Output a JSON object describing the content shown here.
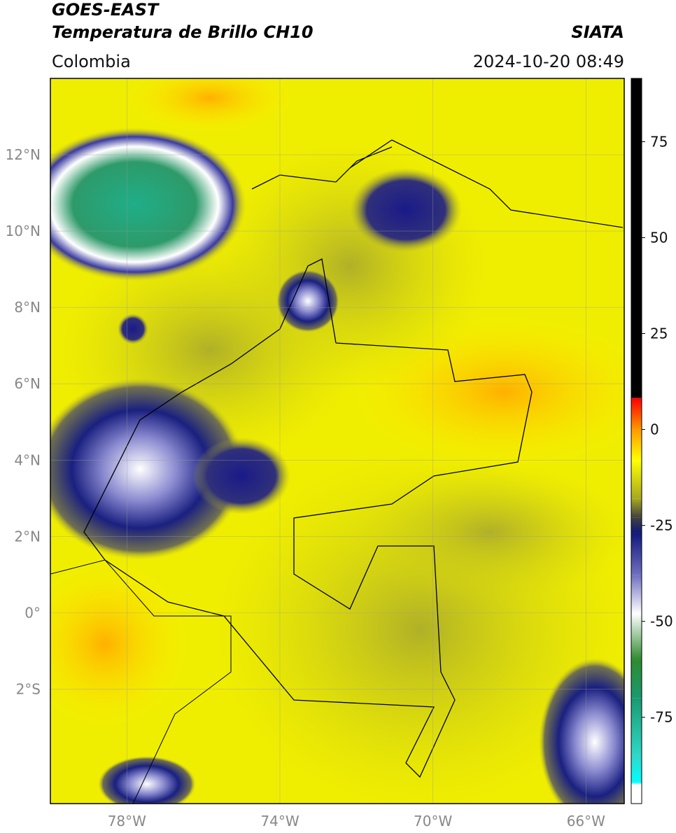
{
  "header": {
    "title": "GOES-EAST",
    "subtitle": "Temperatura de Brillo CH10",
    "source": "SIATA",
    "region": "Colombia",
    "datetime": "2024-10-20 08:49"
  },
  "map": {
    "lonlim": [
      -80,
      -65
    ],
    "latlim": [
      -5,
      14
    ],
    "lonticks": [
      {
        "value": -78,
        "label": "78°W"
      },
      {
        "value": -74,
        "label": "74°W"
      },
      {
        "value": -70,
        "label": "70°W"
      },
      {
        "value": -66,
        "label": "66°W"
      }
    ],
    "latticks": [
      {
        "value": 12,
        "label": "12°N"
      },
      {
        "value": 10,
        "label": "10°N"
      },
      {
        "value": 8,
        "label": "8°N"
      },
      {
        "value": 6,
        "label": "6°N"
      },
      {
        "value": 4,
        "label": "4°N"
      },
      {
        "value": 2,
        "label": "2°N"
      },
      {
        "value": 0,
        "label": "0°"
      },
      {
        "value": -2,
        "label": "2°S"
      }
    ],
    "grid": true
  },
  "colorbar": {
    "lim": [
      -97.5,
      91.5
    ],
    "ticks": [
      75,
      50,
      25,
      0,
      -25,
      -50,
      -75
    ],
    "stops": [
      {
        "value": 91.5,
        "color": "#000000"
      },
      {
        "value": 8.5,
        "color": "#000000"
      },
      {
        "value": 8,
        "color": "#ff0000"
      },
      {
        "value": 0,
        "color": "#ff9900"
      },
      {
        "value": -8,
        "color": "#ffff00"
      },
      {
        "value": -18,
        "color": "#a8a820"
      },
      {
        "value": -23,
        "color": "#404040"
      },
      {
        "value": -27,
        "color": "#10187a"
      },
      {
        "value": -38,
        "color": "#7070c0"
      },
      {
        "value": -48,
        "color": "#ffffff"
      },
      {
        "value": -60,
        "color": "#2e8b2e"
      },
      {
        "value": -70,
        "color": "#1a9a70"
      },
      {
        "value": -85,
        "color": "#30d8c8"
      },
      {
        "value": -92,
        "color": "#00ffff"
      },
      {
        "value": -92.5,
        "color": "#ffffff"
      },
      {
        "value": -97.5,
        "color": "#ffffff"
      }
    ]
  }
}
